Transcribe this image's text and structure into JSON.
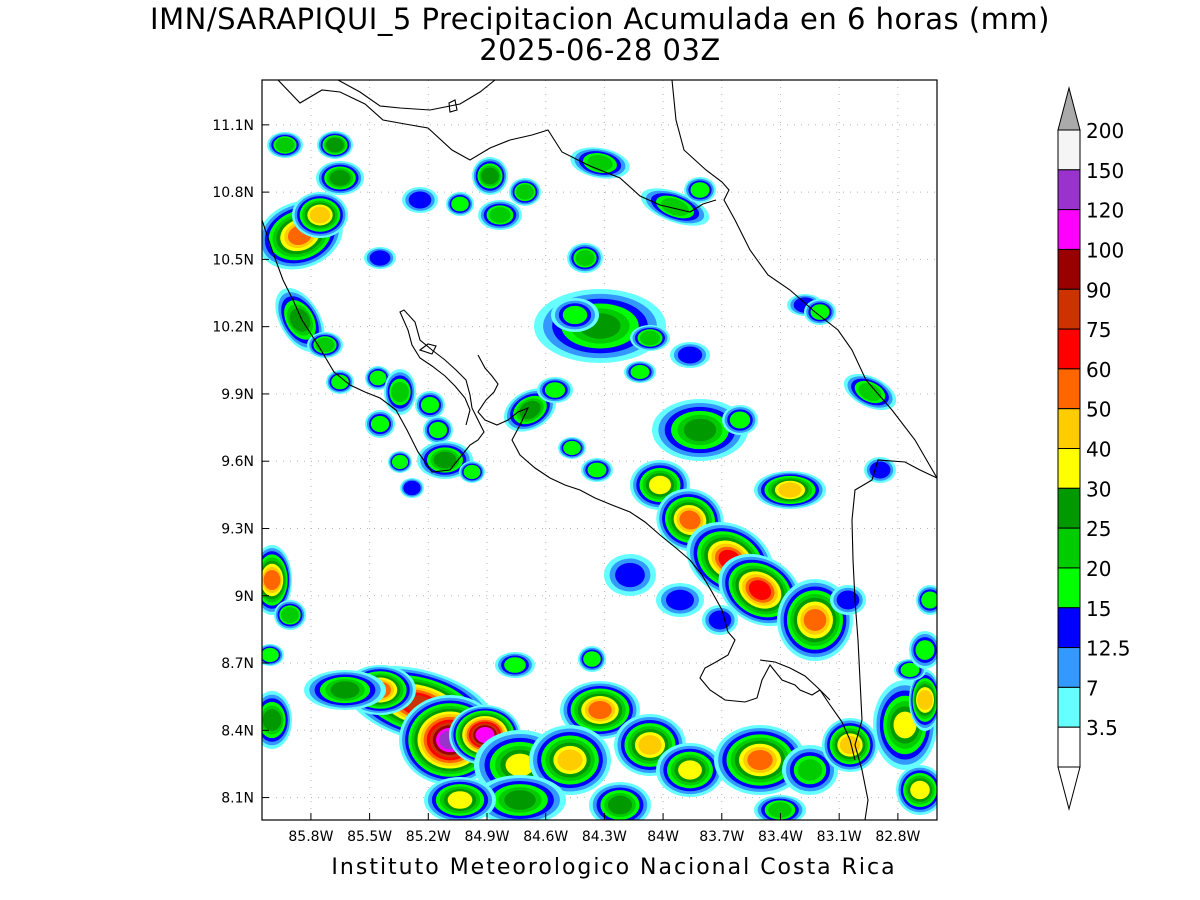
{
  "map": {
    "title_line1": "IMN/SARAPIQUI_5 Precipitacion Acumulada en 6 horas (mm)",
    "title_line2": "2025-06-28 03Z",
    "footer": "Instituto Meteorologico Nacional Costa Rica",
    "lat_labels": [
      "11.1N",
      "10.8N",
      "10.5N",
      "10.2N",
      "9.9N",
      "9.6N",
      "9.3N",
      "9N",
      "8.7N",
      "8.4N",
      "8.1N"
    ],
    "lon_labels": [
      "85.8W",
      "85.5W",
      "85.2W",
      "84.9W",
      "84.6W",
      "84.3W",
      "84W",
      "83.7W",
      "83.4W",
      "83.1W",
      "82.8W"
    ],
    "lat_values": [
      11.1,
      10.8,
      10.5,
      10.2,
      9.9,
      9.6,
      9.3,
      9.0,
      8.7,
      8.4,
      8.1
    ],
    "lon_values": [
      -85.8,
      -85.5,
      -85.2,
      -84.9,
      -84.6,
      -84.3,
      -84.0,
      -83.7,
      -83.4,
      -83.1,
      -82.8
    ],
    "extent": {
      "lon_min": -86.05,
      "lon_max": -82.6,
      "lat_min": 8.0,
      "lat_max": 11.3
    }
  },
  "colorbar": {
    "labels": [
      "200",
      "150",
      "120",
      "100",
      "90",
      "75",
      "60",
      "50",
      "40",
      "30",
      "25",
      "20",
      "15",
      "12.5",
      "7",
      "3.5"
    ],
    "colors": [
      "#f5f5f5",
      "#9933cc",
      "#ff00ff",
      "#990000",
      "#cc3300",
      "#ff0000",
      "#ff6600",
      "#ffcc00",
      "#ffff00",
      "#009900",
      "#00cc00",
      "#00ff00",
      "#0000ff",
      "#3399ff",
      "#66ffff",
      "#ffffff"
    ],
    "top_arrow_color": "#aaaaaa",
    "bottom_arrow_color": "#ffffff"
  },
  "precip_colors": {
    "c35": "#66ffff",
    "c7": "#3399ff",
    "c125": "#0000ff",
    "c15": "#00ff00",
    "c20": "#00cc00",
    "c25": "#009900",
    "c30": "#ffff00",
    "c40": "#ffcc00",
    "c50": "#ff6600",
    "c60": "#ff0000",
    "c75": "#cc3300",
    "c90": "#990000",
    "c100": "#ff00ff",
    "c120": "#9933cc"
  }
}
